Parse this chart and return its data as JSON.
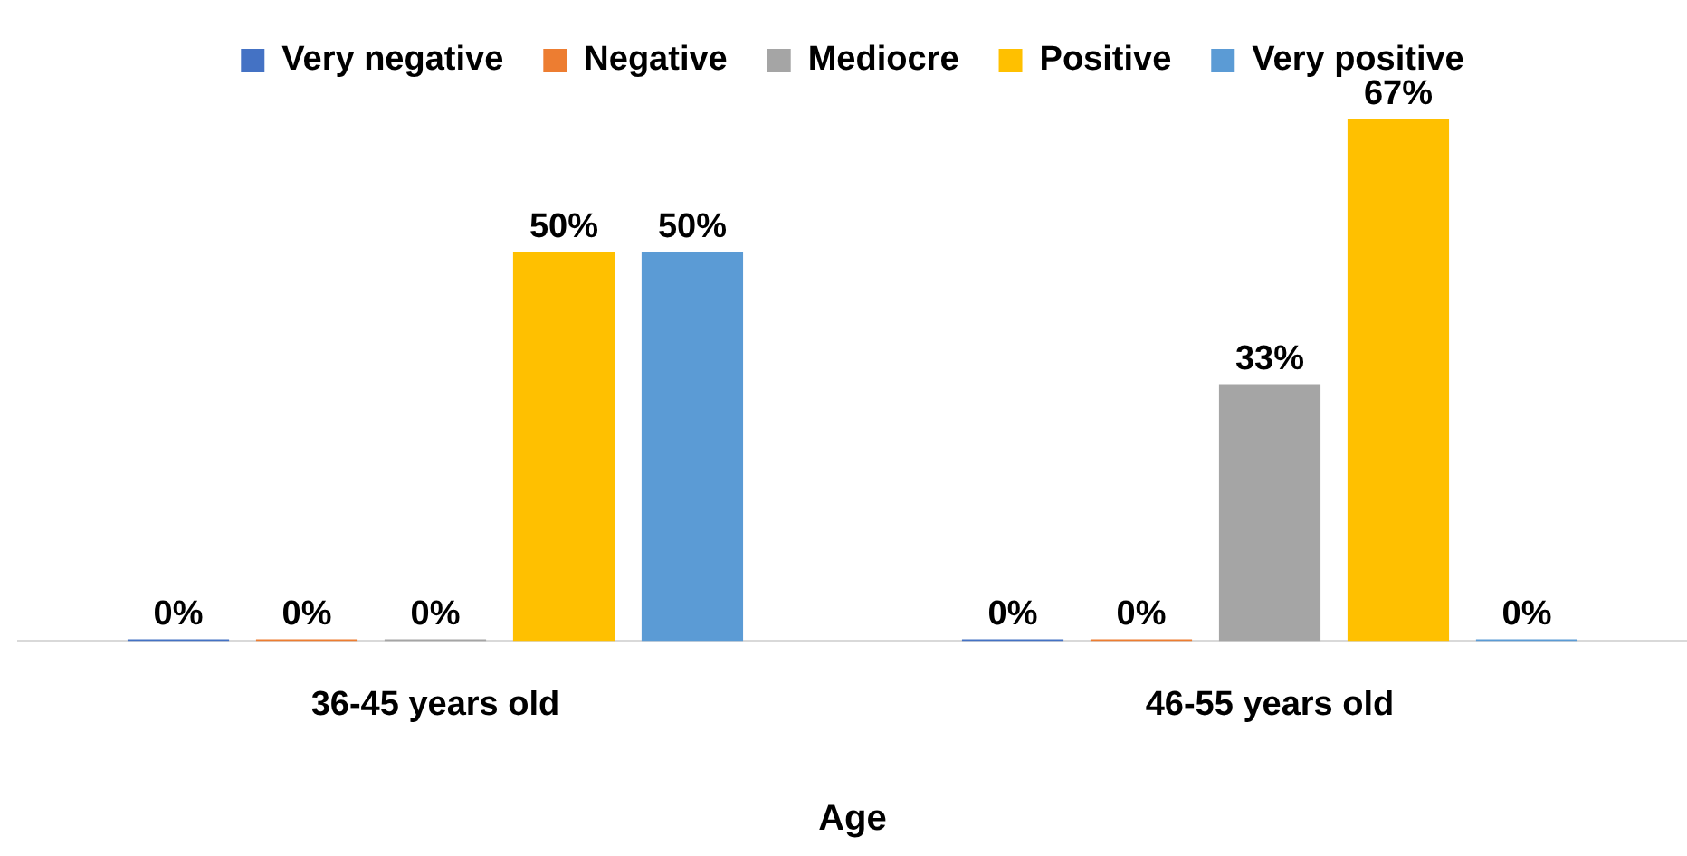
{
  "chart_data": {
    "type": "bar",
    "xlabel": "Age",
    "categories": [
      "36-45 years old",
      "46-55 years old"
    ],
    "series": [
      {
        "name": "Very negative",
        "color": "#4472c4",
        "values": [
          0,
          0
        ],
        "value_labels": [
          "0%",
          "0%"
        ]
      },
      {
        "name": "Negative",
        "color": "#ed7d31",
        "values": [
          0,
          0
        ],
        "value_labels": [
          "0%",
          "0%"
        ]
      },
      {
        "name": "Mediocre",
        "color": "#a5a5a5",
        "values": [
          0,
          33
        ],
        "value_labels": [
          "0%",
          "33%"
        ]
      },
      {
        "name": "Positive",
        "color": "#ffc000",
        "values": [
          50,
          67
        ],
        "value_labels": [
          "50%",
          "67%"
        ]
      },
      {
        "name": "Very positive",
        "color": "#5b9bd5",
        "values": [
          50,
          0
        ],
        "value_labels": [
          "50%",
          "0%"
        ]
      }
    ],
    "tick_labels": "x",
    "grid": false,
    "legend": "top"
  }
}
